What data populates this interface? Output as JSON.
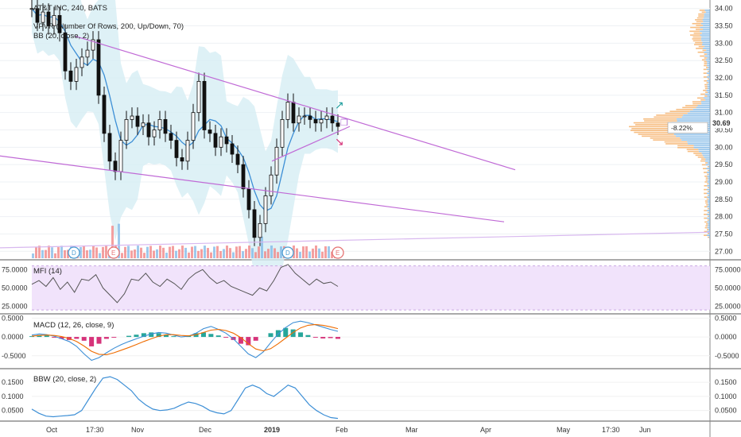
{
  "header": {
    "symbol_title": "AT&T INC, 240, BATS",
    "indicators": [
      "VPVR (Number Of Rows, 200, Up/Down, 70)",
      "BB (20, close, 2)"
    ]
  },
  "colors": {
    "up_volume": "#f6b26b",
    "down_volume": "#7fb7e6",
    "bb_band": "#d6eef4",
    "bb_basis": "#3d8fd6",
    "trendline": "#c06ad6",
    "mfi_fill": "#f1e3fb",
    "macd_hist_pos": "#26a69a",
    "macd_hist_neg": "#d6337a",
    "macd_line": "#3d8fd6",
    "signal_line": "#ef6c00",
    "bbw_line": "#3d8fd6",
    "price_candle": "#111111",
    "vol_bar": "#f08080"
  },
  "chart_data": [
    {
      "type": "line",
      "name": "price",
      "x": [
        "Oct",
        "17:30",
        "Nov",
        "Dec",
        "2019",
        "Feb",
        "Mar",
        "Apr",
        "May",
        "17:30",
        "Jun"
      ],
      "ylim": [
        26.8,
        34.2
      ],
      "y_ticks": [
        "34.00",
        "33.50",
        "33.00",
        "32.50",
        "32.00",
        "31.50",
        "31.00",
        "30.50",
        "30.00",
        "29.50",
        "29.00",
        "28.50",
        "28.00",
        "27.50",
        "27.00"
      ],
      "y_tick_values": [
        34.0,
        33.5,
        33.0,
        32.5,
        32.0,
        31.5,
        31.0,
        30.5,
        30.0,
        29.5,
        29.0,
        28.5,
        28.0,
        27.5,
        27.0
      ],
      "last_price": "30.69",
      "change_badge": "-8.22%",
      "close_series": [
        34.0,
        33.6,
        33.9,
        33.5,
        33.8,
        33.3,
        32.2,
        31.9,
        32.3,
        32.6,
        32.8,
        33.1,
        31.5,
        30.4,
        29.6,
        29.3,
        30.2,
        30.8,
        30.9,
        30.6,
        30.7,
        30.3,
        30.5,
        30.8,
        30.4,
        30.2,
        29.7,
        29.6,
        30.2,
        31.0,
        31.9,
        30.5,
        30.4,
        30.0,
        30.3,
        30.1,
        29.8,
        29.5,
        28.8,
        28.2,
        27.4,
        27.8,
        28.6,
        29.2,
        30.0,
        30.8,
        31.3,
        30.7,
        30.9,
        30.9,
        30.8,
        30.7,
        30.8,
        30.9,
        30.7,
        30.6
      ],
      "dividend_markers": [
        "D",
        "E",
        "D",
        "E"
      ]
    },
    {
      "type": "line",
      "title": "MFI (14)",
      "y_ticks": [
        "75.0000",
        "50.0000",
        "25.0000"
      ],
      "y_tick_values": [
        75,
        50,
        25
      ],
      "ylim": [
        18,
        85
      ],
      "values": [
        55,
        60,
        52,
        64,
        48,
        58,
        44,
        62,
        60,
        68,
        50,
        40,
        30,
        42,
        62,
        60,
        70,
        58,
        52,
        62,
        56,
        48,
        62,
        70,
        75,
        64,
        56,
        60,
        52,
        48,
        44,
        40,
        50,
        46,
        60,
        78,
        82,
        70,
        62,
        54,
        62,
        56,
        58,
        52
      ]
    },
    {
      "type": "bar",
      "title": "MACD (12, 26, close, 9)",
      "y_ticks": [
        "0.5000",
        "0.0000",
        "-0.5000"
      ],
      "y_tick_values": [
        0.5,
        0.0,
        -0.5
      ],
      "ylim": [
        -0.8,
        0.55
      ],
      "histogram": [
        0.02,
        0.05,
        0.04,
        -0.02,
        -0.05,
        -0.08,
        -0.05,
        -0.1,
        -0.25,
        -0.18,
        -0.05,
        -0.02,
        0.0,
        0.03,
        0.06,
        0.1,
        0.12,
        0.1,
        0.06,
        0.02,
        0.0,
        0.04,
        0.1,
        0.12,
        0.08,
        0.04,
        -0.02,
        -0.08,
        -0.18,
        -0.22,
        -0.1,
        0.0,
        0.1,
        0.18,
        0.24,
        0.2,
        0.12,
        0.05,
        -0.02,
        -0.04,
        -0.03,
        -0.05
      ],
      "macd": [
        0.05,
        0.08,
        0.06,
        0.02,
        -0.05,
        -0.12,
        -0.25,
        -0.45,
        -0.62,
        -0.55,
        -0.42,
        -0.3,
        -0.2,
        -0.12,
        -0.05,
        0.02,
        0.08,
        0.12,
        0.1,
        0.05,
        0.0,
        0.02,
        0.1,
        0.22,
        0.28,
        0.2,
        0.1,
        -0.05,
        -0.25,
        -0.45,
        -0.55,
        -0.4,
        -0.15,
        0.08,
        0.25,
        0.38,
        0.42,
        0.38,
        0.32,
        0.26,
        0.2,
        0.15
      ],
      "signal": [
        0.02,
        0.04,
        0.05,
        0.04,
        0.01,
        -0.04,
        -0.12,
        -0.24,
        -0.38,
        -0.46,
        -0.47,
        -0.42,
        -0.35,
        -0.28,
        -0.2,
        -0.12,
        -0.05,
        0.02,
        0.06,
        0.06,
        0.04,
        0.03,
        0.06,
        0.12,
        0.18,
        0.2,
        0.17,
        0.1,
        -0.02,
        -0.18,
        -0.32,
        -0.37,
        -0.31,
        -0.18,
        -0.03,
        0.12,
        0.24,
        0.31,
        0.33,
        0.31,
        0.27,
        0.22
      ]
    },
    {
      "type": "line",
      "title": "BBW (20, close, 2)",
      "y_ticks": [
        "0.1500",
        "0.1000",
        "0.0500"
      ],
      "y_tick_values": [
        0.15,
        0.1,
        0.05
      ],
      "ylim": [
        0.018,
        0.19
      ],
      "values": [
        0.055,
        0.04,
        0.03,
        0.028,
        0.03,
        0.032,
        0.035,
        0.05,
        0.09,
        0.13,
        0.165,
        0.17,
        0.16,
        0.14,
        0.12,
        0.09,
        0.07,
        0.055,
        0.05,
        0.052,
        0.058,
        0.07,
        0.08,
        0.075,
        0.065,
        0.05,
        0.042,
        0.038,
        0.05,
        0.09,
        0.13,
        0.14,
        0.13,
        0.11,
        0.1,
        0.12,
        0.14,
        0.13,
        0.1,
        0.07,
        0.05,
        0.035,
        0.025,
        0.022
      ]
    }
  ]
}
